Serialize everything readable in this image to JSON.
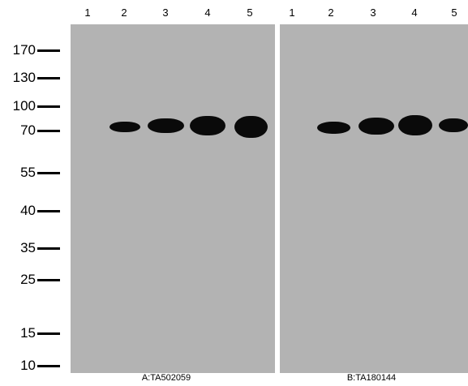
{
  "lane_labels": {
    "a": [
      "1",
      "2",
      "3",
      "4",
      "5"
    ],
    "b": [
      "1",
      "2",
      "3",
      "4",
      "5"
    ]
  },
  "markers": [
    "170",
    "130",
    "100",
    "70",
    "55",
    "40",
    "35",
    "25",
    "15",
    "10"
  ],
  "captions": {
    "a": "A:TA502059",
    "b": "B:TA180144"
  },
  "colors": {
    "membrane": "#b3b3b3",
    "band": "#0a0a0a",
    "divider": "#ffffff"
  }
}
